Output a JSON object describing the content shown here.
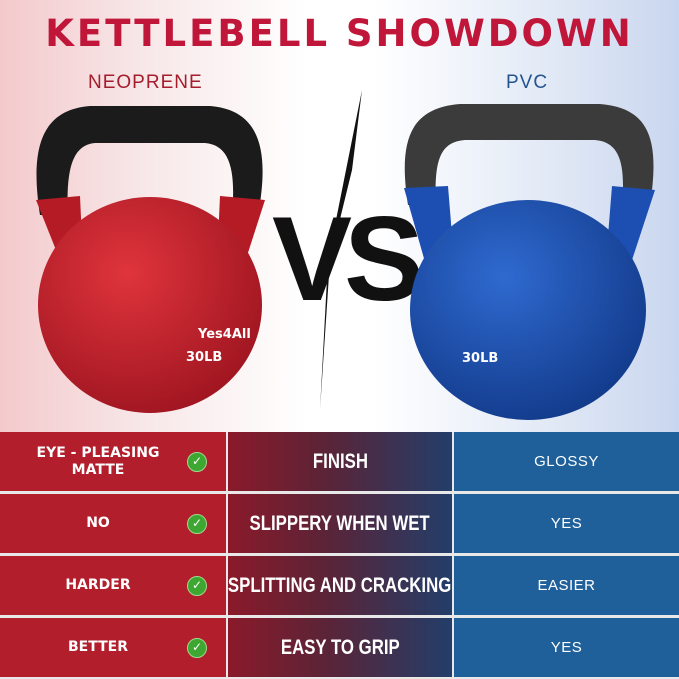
{
  "title": "KETTLEBELL SHOWDOWN",
  "left_label": "NEOPRENE",
  "right_label": "PVC",
  "vs": "VS",
  "left_product": {
    "brand": "Yes4All",
    "weight": "30LB",
    "color": "#c8202c"
  },
  "right_product": {
    "weight": "30LB",
    "color": "#1a4fb0"
  },
  "rows": [
    {
      "neoprene": "EYE - PLEASING MATTE",
      "feature": "FINISH",
      "pvc": "GLOSSY",
      "icon": "check-circle-icon"
    },
    {
      "neoprene": "NO",
      "feature": "SLIPPERY WHEN WET",
      "pvc": "YES",
      "icon": "check-circle-icon"
    },
    {
      "neoprene": "HARDER",
      "feature": "SPLITTING AND CRACKING",
      "pvc": "EASIER",
      "icon": "check-circle-icon"
    },
    {
      "neoprene": "BETTER",
      "feature": "EASY TO GRIP",
      "pvc": "YES",
      "icon": "check-circle-icon"
    }
  ],
  "colors": {
    "title": "#c0163a",
    "neoprene": "#b21e2c",
    "pvc": "#1f609b",
    "check": "#3da732"
  }
}
